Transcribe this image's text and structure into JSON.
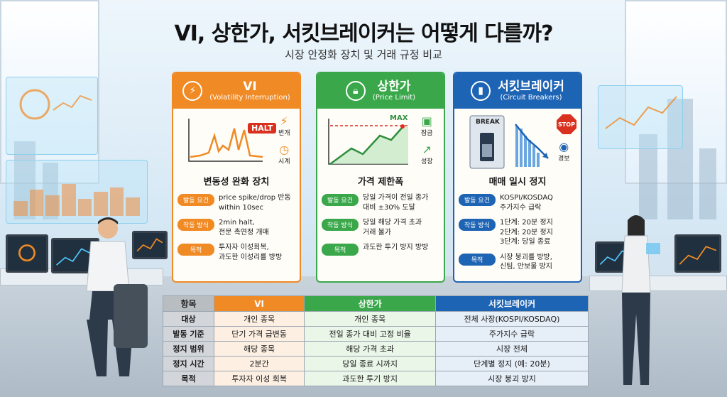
{
  "title": "VI, 상한가, 서킷브레이커는 어떻게 다를까?",
  "subtitle": "시장 안정화 장치 및 거래 규정 비교",
  "cards": [
    {
      "name": "VI",
      "english": "(Volatility Interruption)",
      "icon": "lightning-icon",
      "chart_label": "HALT",
      "side_labels": [
        "번개",
        "시계"
      ],
      "caption": "변동성 완화 장치",
      "rows": [
        {
          "tag": "발동 요건",
          "text": "price spike/drop 반동\nwithin 10sec"
        },
        {
          "tag": "작동 방식",
          "text": "2min halt,\n전문 촉연정 개매"
        },
        {
          "tag": "목적",
          "text": "투자자 이성회복,\n과도한 이성리를 방방"
        }
      ]
    },
    {
      "name": "상한가",
      "english": "(Price Limit)",
      "icon": "lock-icon",
      "chart_label": "MAX",
      "side_labels": [
        "잠금",
        "성장"
      ],
      "caption": "가격 제한폭",
      "rows": [
        {
          "tag": "발동 요건",
          "text": "당일 가격이 전일 종가\n대비 ±30% 도달"
        },
        {
          "tag": "작동 방식",
          "text": "당일 해당 가격 초과\n거래 불가"
        },
        {
          "tag": "목적",
          "text": "과도한 투기 방지 방방"
        }
      ]
    },
    {
      "name": "서킷브레이커",
      "english": "(Circuit Breakers)",
      "icon": "switch-icon",
      "chart_label": "BREAK",
      "stop_label": "STOP",
      "side_labels": [
        "경보"
      ],
      "caption": "매매 일시 정지",
      "rows": [
        {
          "tag": "발동 요건",
          "text": "KOSPI/KOSDAQ\n주가지수 급락"
        },
        {
          "tag": "작동 방식",
          "text": "1단계: 20분 정지\n2단계: 20분 정지\n3단계: 당일 종료"
        },
        {
          "tag": "목적",
          "text": "시장 붕괴를 방방,\n신팀, 안보물 방지"
        }
      ]
    }
  ],
  "table": {
    "headers": [
      "항목",
      "VI",
      "상한가",
      "서킷브레이커"
    ],
    "rows": [
      [
        "대상",
        "개인 종목",
        "개인 종목",
        "전체 사장(KOSPI/KOSDAQ)"
      ],
      [
        "발동 기준",
        "단기 가격 급변동",
        "전일 종가 대비 고정 비율",
        "주가지수 급락"
      ],
      [
        "정지 범위",
        "해당 종목",
        "해당 가격 초과",
        "시장 전체"
      ],
      [
        "정지 시간",
        "2분간",
        "당일 종료 시까지",
        "단계별 정지 (예: 20분)"
      ],
      [
        "목적",
        "투자자 이성 회복",
        "과도한 투기 방지",
        "시장 붕괴 방지"
      ]
    ]
  },
  "colors": {
    "vi": "#f08a24",
    "price_limit": "#3aa84a",
    "circuit_breaker": "#1e64b4"
  }
}
